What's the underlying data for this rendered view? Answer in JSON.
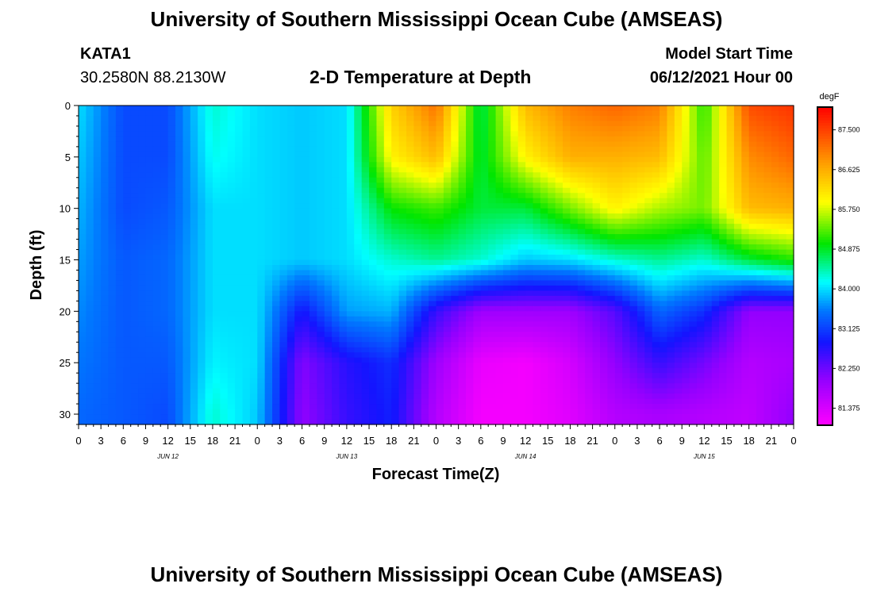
{
  "header": {
    "title_top": "University of Southern Mississippi Ocean Cube (AMSEAS)",
    "station_id": "KATA1",
    "station_coords": "30.2580N  88.2130W",
    "plot_title": "2-D Temperature at Depth",
    "model_start_label": "Model Start Time",
    "model_start_value": "06/12/2021 Hour 00",
    "title_bottom": "University of Southern Mississippi Ocean Cube (AMSEAS)"
  },
  "chart_data": {
    "type": "heatmap",
    "title": "2-D Temperature at Depth",
    "xlabel": "Forecast Time(Z)",
    "ylabel": "Depth (ft)",
    "units": "degF",
    "x_hours": [
      0,
      6,
      12,
      18,
      24,
      30,
      36,
      42,
      48,
      54,
      60,
      66,
      72,
      78,
      84,
      90,
      96
    ],
    "x_tick_labels": [
      "0",
      "3",
      "6",
      "9",
      "12",
      "15",
      "18",
      "21",
      "0",
      "3",
      "6",
      "9",
      "12",
      "15",
      "18",
      "21",
      "0",
      "3",
      "6",
      "9",
      "12",
      "15",
      "18",
      "21",
      "0",
      "3",
      "6",
      "9",
      "12",
      "15",
      "18",
      "21",
      "0"
    ],
    "date_labels": [
      "JUN 12",
      "JUN 13",
      "JUN 14",
      "JUN 15"
    ],
    "y_depths": [
      0,
      5,
      10,
      15,
      20,
      25,
      30
    ],
    "y_tick_labels": [
      "0",
      "5",
      "10",
      "15",
      "20",
      "25",
      "30"
    ],
    "ylim": [
      0,
      31
    ],
    "colorbar_ticks": [
      "87.500",
      "86.625",
      "85.750",
      "84.875",
      "84.000",
      "83.125",
      "82.250",
      "81.375"
    ],
    "colorbar_range": [
      81.0,
      88.0
    ],
    "z": [
      [
        84.0,
        83.2,
        83.2,
        84.3,
        84.0,
        83.9,
        84.0,
        86.3,
        87.1,
        84.7,
        86.5,
        87.0,
        87.2,
        87.0,
        85.1,
        87.4,
        87.6
      ],
      [
        83.9,
        83.2,
        83.2,
        84.2,
        84.0,
        83.9,
        84.0,
        86.0,
        86.5,
        84.8,
        86.0,
        86.6,
        86.6,
        86.5,
        85.3,
        86.9,
        87.2
      ],
      [
        83.8,
        83.2,
        83.3,
        84.0,
        84.0,
        83.9,
        84.0,
        85.0,
        85.2,
        84.8,
        84.8,
        85.4,
        86.0,
        85.6,
        85.4,
        86.5,
        86.6
      ],
      [
        83.7,
        83.3,
        83.4,
        84.0,
        84.0,
        83.9,
        84.0,
        84.3,
        84.5,
        84.3,
        83.9,
        84.0,
        84.3,
        84.5,
        84.3,
        84.8,
        85.1
      ],
      [
        83.6,
        83.3,
        83.4,
        84.0,
        84.0,
        82.8,
        83.7,
        83.8,
        82.6,
        81.9,
        81.9,
        81.9,
        82.4,
        83.4,
        83.0,
        82.0,
        82.0
      ],
      [
        83.5,
        83.3,
        83.3,
        84.1,
        84.0,
        82.1,
        82.7,
        83.0,
        81.9,
        81.2,
        81.1,
        81.4,
        82.0,
        82.6,
        82.2,
        81.7,
        81.8
      ],
      [
        83.4,
        83.3,
        83.2,
        84.3,
        83.9,
        82.0,
        82.6,
        82.9,
        81.7,
        81.1,
        81.1,
        81.3,
        81.7,
        81.8,
        81.7,
        81.6,
        82.0
      ]
    ]
  }
}
